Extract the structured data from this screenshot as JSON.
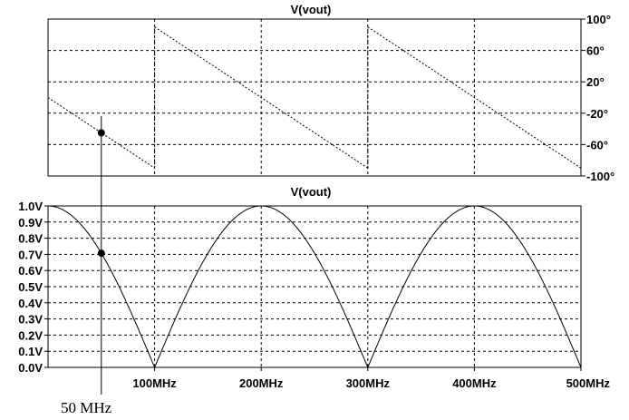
{
  "chart_data": [
    {
      "type": "line",
      "title": "V(vout)",
      "xlim": [
        0,
        500
      ],
      "ylim": [
        -100,
        100
      ],
      "y_ticks": [
        100,
        60,
        20,
        -20,
        -60,
        -100
      ],
      "y_tick_labels": [
        "100°",
        "60°",
        "20°",
        "-20°",
        "-60°",
        "-100°"
      ],
      "y_axis_side": "right",
      "grid": true,
      "series": [
        {
          "style": "dotted",
          "segments": [
            {
              "x": [
                0,
                100
              ],
              "y": [
                0,
                -90
              ]
            },
            {
              "x": [
                100,
                300
              ],
              "y": [
                90,
                -90
              ]
            },
            {
              "x": [
                300,
                500
              ],
              "y": [
                90,
                -90
              ]
            }
          ]
        }
      ],
      "marker": {
        "x": 50,
        "y": -45
      }
    },
    {
      "type": "line",
      "title": "V(vout)",
      "xlim": [
        0,
        500
      ],
      "ylim": [
        0,
        1.0
      ],
      "y_ticks": [
        1.0,
        0.9,
        0.8,
        0.7,
        0.6,
        0.5,
        0.4,
        0.3,
        0.2,
        0.1,
        0.0
      ],
      "y_tick_labels": [
        "1.0V",
        "0.9V",
        "0.8V",
        "0.7V",
        "0.6V",
        "0.5V",
        "0.4V",
        "0.3V",
        "0.2V",
        "0.1V",
        "0.0V"
      ],
      "x_ticks": [
        100,
        200,
        300,
        400,
        500
      ],
      "x_tick_labels": [
        "100MHz",
        "200MHz",
        "300MHz",
        "400MHz",
        "500MHz"
      ],
      "grid": true,
      "series": [
        {
          "function": "abs_cos_pi_f_over_200",
          "style": "solid"
        }
      ],
      "marker": {
        "x": 50,
        "y": 0.707
      }
    }
  ],
  "annotation": {
    "text": "50 MHz",
    "x": 50
  }
}
